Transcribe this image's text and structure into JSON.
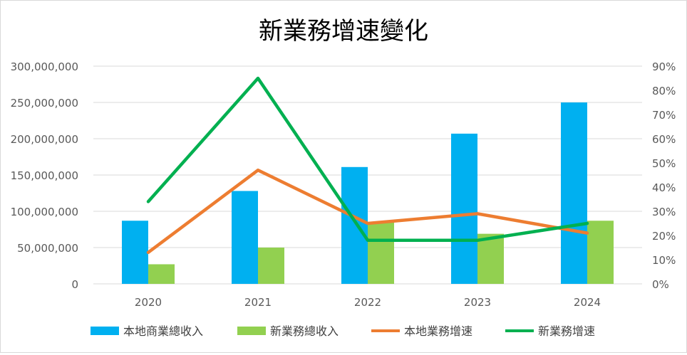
{
  "chart_data": {
    "type": "bar",
    "title": "新業務增速變化",
    "categories": [
      "2020",
      "2021",
      "2022",
      "2023",
      "2024"
    ],
    "y_left": {
      "min": 0,
      "max": 300000000,
      "ticks": [
        "0",
        "50,000,000",
        "100,000,000",
        "150,000,000",
        "200,000,000",
        "250,000,000",
        "300,000,000"
      ]
    },
    "y_right": {
      "min": 0,
      "max": 0.9,
      "ticks": [
        "0%",
        "10%",
        "20%",
        "30%",
        "40%",
        "50%",
        "60%",
        "70%",
        "80%",
        "90%"
      ]
    },
    "bar_series": [
      {
        "name": "本地商業總收入",
        "color": "#00b0f0",
        "values": [
          87000000,
          128000000,
          161000000,
          207000000,
          250000000
        ]
      },
      {
        "name": "新業務總收入",
        "color": "#92d050",
        "values": [
          27000000,
          50000000,
          85000000,
          69000000,
          87000000
        ]
      }
    ],
    "line_series": [
      {
        "name": "本地業務增速",
        "color": "#ed7d31",
        "values": [
          0.13,
          0.47,
          0.25,
          0.29,
          0.21
        ]
      },
      {
        "name": "新業務增速",
        "color": "#00b050",
        "values": [
          0.34,
          0.85,
          0.18,
          0.18,
          0.25
        ]
      }
    ],
    "grid": true,
    "legend_position": "bottom"
  }
}
